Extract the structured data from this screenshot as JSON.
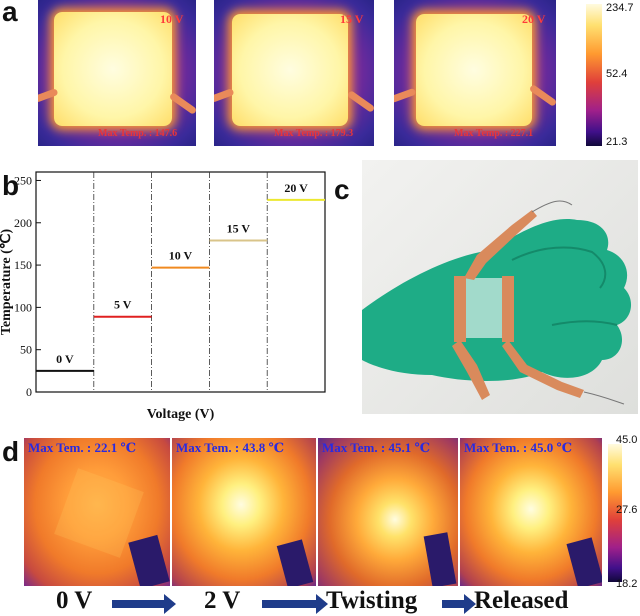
{
  "panels": {
    "a": {
      "letter": "a",
      "images": [
        {
          "voltage": "10 V",
          "max": "Max Temp. : 147.6"
        },
        {
          "voltage": "15 V",
          "max": "Max Temp. : 179.3"
        },
        {
          "voltage": "20 V",
          "max": "Max Temp. : 227.1"
        }
      ],
      "colorbar": {
        "max": "234.7",
        "mid": "52.4",
        "min": "21.3"
      }
    },
    "b": {
      "letter": "b"
    },
    "c": {
      "letter": "c"
    },
    "d": {
      "letter": "d",
      "images": [
        {
          "max": "Max Tem. : 22.1 ℃"
        },
        {
          "max": "Max Tem. : 43.8 ℃"
        },
        {
          "max": "Max Tem. : 45.1 ℃"
        },
        {
          "max": "Max Tem. : 45.0 ℃"
        }
      ],
      "colorbar": {
        "max": "45.0",
        "mid": "27.6",
        "min": "18.2"
      },
      "stages": [
        "0 V",
        "2 V",
        "Twisting",
        "Released"
      ]
    }
  },
  "chart_data": {
    "type": "line",
    "xlabel": "Voltage (V)",
    "ylabel": "Temperature (℃)",
    "ylim": [
      0,
      260
    ],
    "yticks": [
      "0",
      "50",
      "100",
      "150",
      "200",
      "250"
    ],
    "grid": false,
    "series": [
      {
        "name": "0 V",
        "value": 25,
        "color": "#111111"
      },
      {
        "name": "5 V",
        "value": 89,
        "color": "#e02020"
      },
      {
        "name": "10 V",
        "value": 147,
        "color": "#f08a20"
      },
      {
        "name": "15 V",
        "value": 179,
        "color": "#d9c48a"
      },
      {
        "name": "20 V",
        "value": 227,
        "color": "#ece830"
      }
    ]
  }
}
